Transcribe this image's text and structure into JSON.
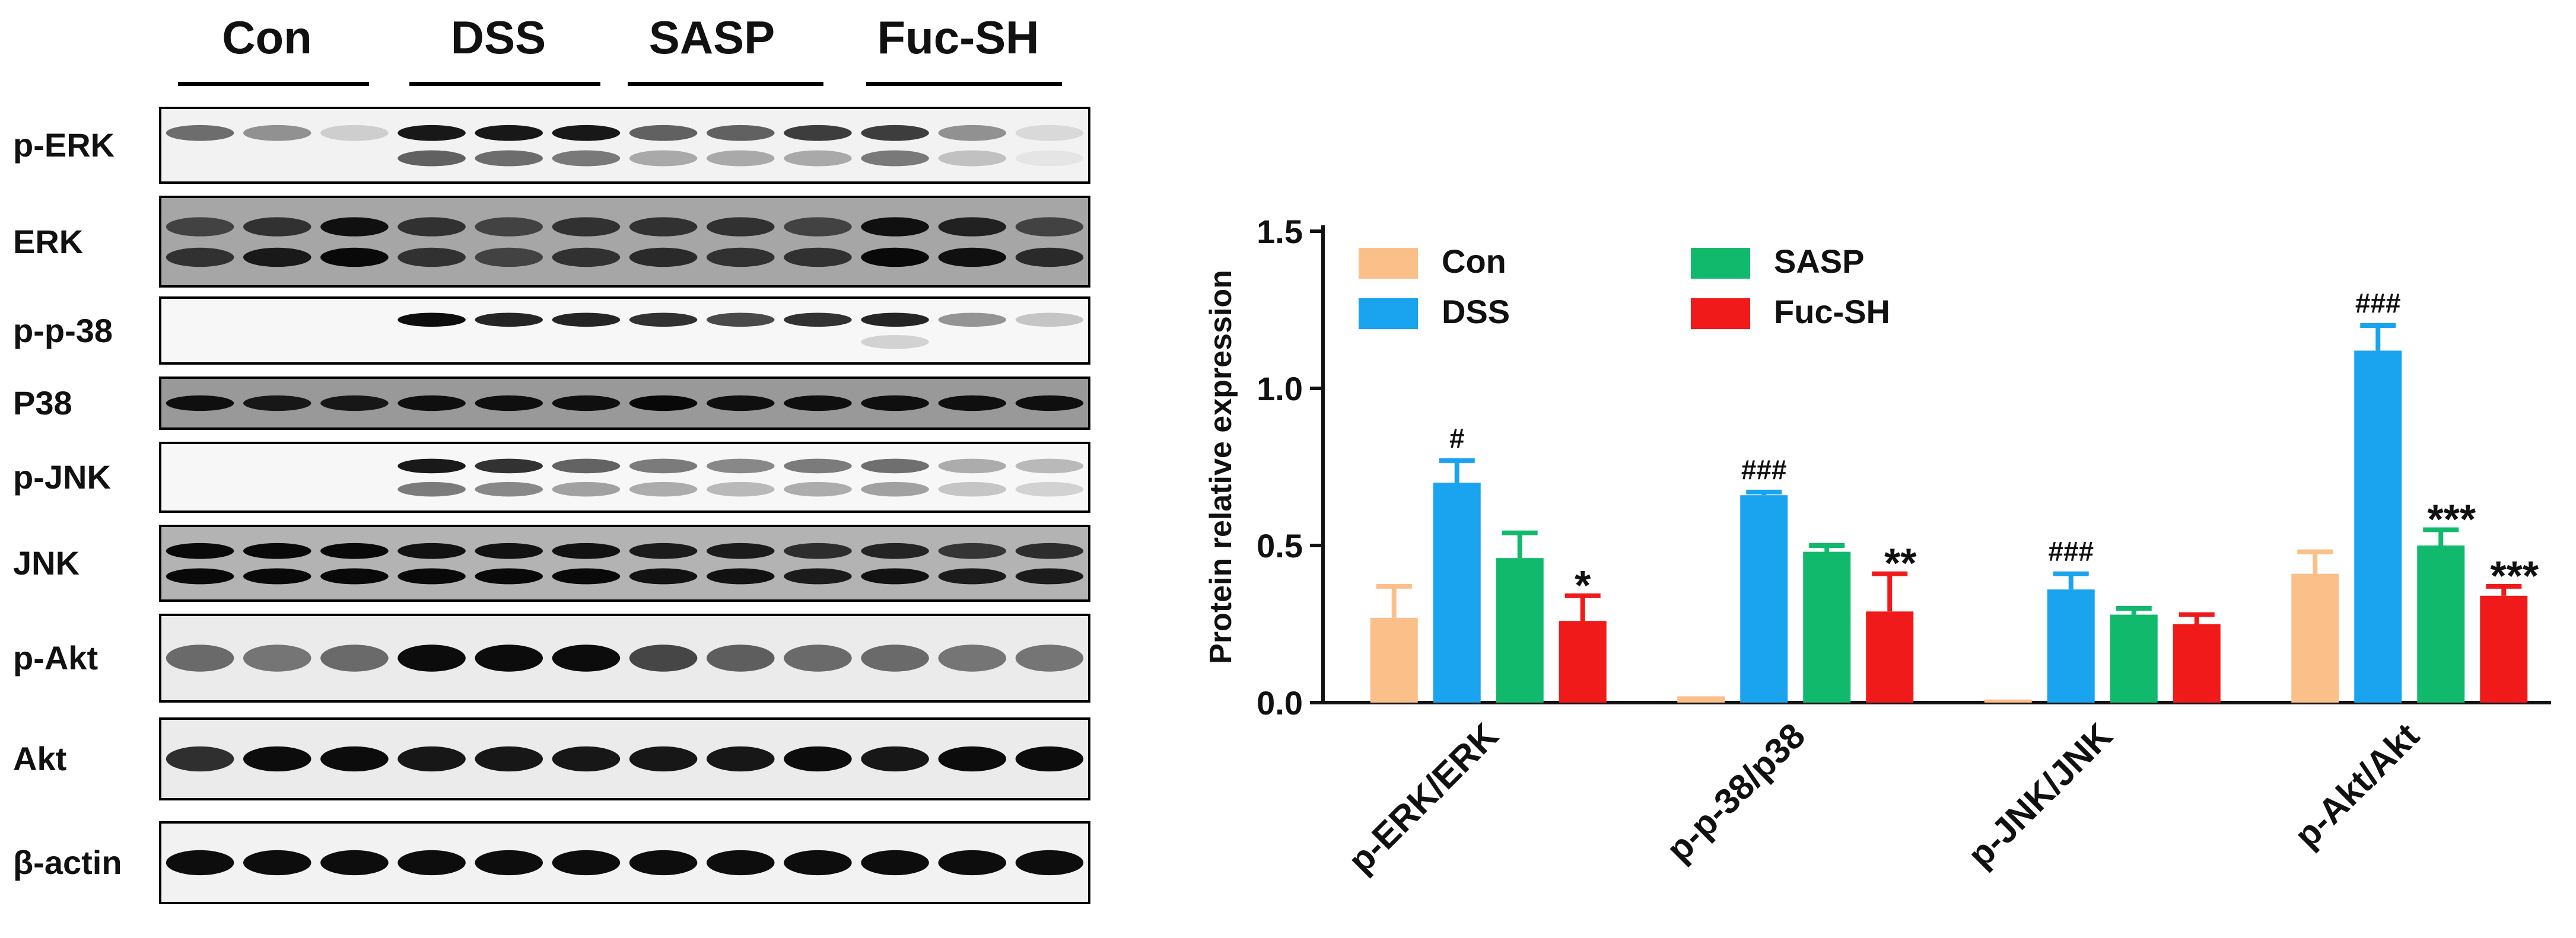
{
  "blot": {
    "groups": [
      "Con",
      "DSS",
      "SASP",
      "Fuc-SH"
    ],
    "rows": [
      {
        "label": "p-ERK",
        "bands": [
          0.55,
          0.4,
          0.15,
          0.9,
          0.9,
          0.9,
          0.6,
          0.6,
          0.75,
          0.75,
          0.4,
          0.1
        ],
        "secondary": [
          0,
          0,
          0,
          0.6,
          0.55,
          0.5,
          0.3,
          0.3,
          0.3,
          0.5,
          0.2,
          0.05
        ],
        "bg": 0.05
      },
      {
        "label": "ERK",
        "bands": [
          0.6,
          0.7,
          0.9,
          0.7,
          0.6,
          0.7,
          0.7,
          0.7,
          0.6,
          0.9,
          0.8,
          0.6
        ],
        "secondary": [
          0.7,
          0.85,
          0.95,
          0.7,
          0.6,
          0.7,
          0.75,
          0.7,
          0.7,
          0.95,
          0.9,
          0.75
        ],
        "bg": 0.35
      },
      {
        "label": "p-p-38",
        "bands": [
          0,
          0,
          0,
          0.95,
          0.85,
          0.85,
          0.8,
          0.7,
          0.8,
          0.85,
          0.4,
          0.2
        ],
        "secondary": [
          0,
          0,
          0,
          0,
          0,
          0,
          0,
          0,
          0,
          0.15,
          0,
          0
        ],
        "bg": 0.03
      },
      {
        "label": "P38",
        "bands": [
          0.9,
          0.85,
          0.85,
          0.9,
          0.9,
          0.9,
          0.95,
          0.9,
          0.9,
          0.9,
          0.9,
          0.9
        ],
        "secondary": [],
        "bg": 0.4
      },
      {
        "label": "p-JNK",
        "bands": [
          0,
          0,
          0,
          0.9,
          0.8,
          0.6,
          0.5,
          0.45,
          0.5,
          0.55,
          0.3,
          0.25
        ],
        "secondary": [
          0,
          0,
          0,
          0.5,
          0.45,
          0.35,
          0.3,
          0.25,
          0.3,
          0.35,
          0.2,
          0.15
        ],
        "bg": 0.03
      },
      {
        "label": "JNK",
        "bands": [
          0.95,
          0.95,
          0.95,
          0.9,
          0.9,
          0.9,
          0.85,
          0.85,
          0.75,
          0.8,
          0.7,
          0.75
        ],
        "secondary": [
          0.95,
          0.95,
          0.95,
          0.95,
          0.95,
          0.95,
          0.9,
          0.9,
          0.85,
          0.9,
          0.85,
          0.85
        ],
        "bg": 0.3
      },
      {
        "label": "p-Akt",
        "bands": [
          0.55,
          0.5,
          0.55,
          0.95,
          0.95,
          0.95,
          0.7,
          0.6,
          0.55,
          0.55,
          0.5,
          0.5
        ],
        "secondary": [],
        "bg": 0.08
      },
      {
        "label": "Akt",
        "bands": [
          0.8,
          0.95,
          0.95,
          0.9,
          0.9,
          0.9,
          0.9,
          0.9,
          0.95,
          0.9,
          0.95,
          0.95
        ],
        "secondary": [],
        "bg": 0.08
      },
      {
        "label": "β-actin",
        "bands": [
          0.95,
          0.95,
          0.95,
          0.95,
          0.95,
          0.95,
          0.95,
          0.95,
          0.95,
          0.95,
          0.95,
          0.95
        ],
        "secondary": [],
        "bg": 0.05
      }
    ]
  },
  "chart_data": {
    "type": "bar",
    "ylabel": "Protein relative expression",
    "xlabel": "",
    "ylim": [
      0,
      1.5
    ],
    "yticks": [
      "0.0",
      "0.5",
      "1.0",
      "1.5"
    ],
    "categories": [
      "p-ERK/ERK",
      "p-p-38/p38",
      "p-JNK/JNK",
      "p-Akt/Akt"
    ],
    "series": [
      {
        "name": "Con",
        "color": "#fbbf8a",
        "values": [
          0.27,
          0.02,
          0.01,
          0.41
        ],
        "errors": [
          0.1,
          0.0,
          0.0,
          0.07
        ],
        "annotations": [
          "",
          "",
          "",
          ""
        ]
      },
      {
        "name": "DSS",
        "color": "#1aa3ee",
        "values": [
          0.7,
          0.66,
          0.36,
          1.12
        ],
        "errors": [
          0.07,
          0.01,
          0.05,
          0.08
        ],
        "annotations": [
          "#",
          "###",
          "###",
          "###"
        ]
      },
      {
        "name": "SASP",
        "color": "#10b96b",
        "values": [
          0.46,
          0.48,
          0.28,
          0.5
        ],
        "errors": [
          0.08,
          0.02,
          0.02,
          0.05
        ],
        "annotations": [
          "",
          "",
          "",
          "***"
        ]
      },
      {
        "name": "Fuc-SH",
        "color": "#f01a1a",
        "values": [
          0.26,
          0.29,
          0.25,
          0.34
        ],
        "errors": [
          0.08,
          0.12,
          0.03,
          0.03
        ],
        "annotations": [
          "*",
          "**",
          "",
          "***"
        ]
      }
    ],
    "legend_placement": "top-left",
    "grid": false
  }
}
